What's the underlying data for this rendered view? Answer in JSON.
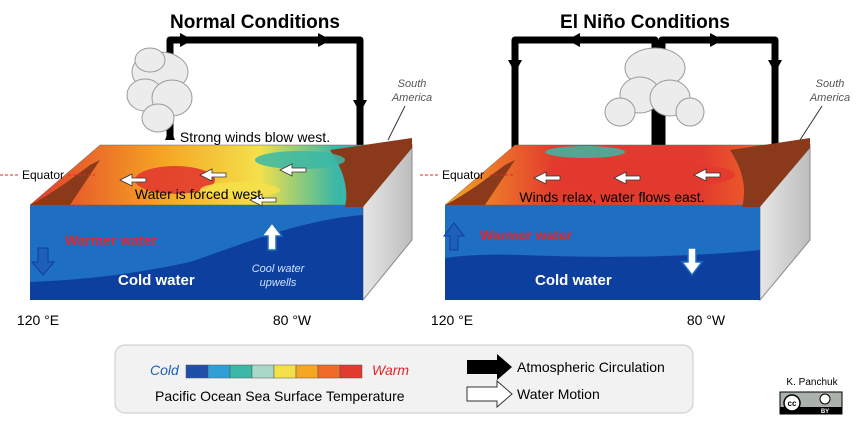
{
  "panels": {
    "normal": {
      "title": "Normal Conditions",
      "south_america": [
        "South",
        "America"
      ],
      "winds": "Strong winds blow west.",
      "water": "Water is forced west.",
      "equator": "Equator",
      "warm": "Warmer water",
      "cold": "Cold water",
      "upwell": [
        "Cool water",
        "upwells"
      ],
      "lon_left": "120 °E",
      "lon_right": "80 °W"
    },
    "elnino": {
      "title": "El Niño Conditions",
      "south_america": [
        "South",
        "America"
      ],
      "winds": "Winds relax, water flows east.",
      "equator": "Equator",
      "warm": "Warmer water",
      "cold": "Cold water",
      "lon_left": "120 °E",
      "lon_right": "80 °W"
    }
  },
  "legend": {
    "cold": "Cold",
    "warm": "Warm",
    "sst": "Pacific Ocean Sea Surface Temperature",
    "atmo": "Atmospheric Circulation",
    "water": "Water Motion",
    "colors": [
      "#1f4fa8",
      "#2f9fd6",
      "#3bb8a6",
      "#a8d8c8",
      "#f4e04a",
      "#f5a623",
      "#f06a2a",
      "#e23a2f"
    ]
  },
  "credit": {
    "author": "K. Panchuk",
    "cc": "cc",
    "by": "BY"
  },
  "colors": {
    "warm_text": "#e3262b",
    "ocean_cold": "#0d3f9e",
    "ocean_warm": "#1e6ec2",
    "land": "#8a3a1a",
    "box_side": "#cfcfcf"
  }
}
